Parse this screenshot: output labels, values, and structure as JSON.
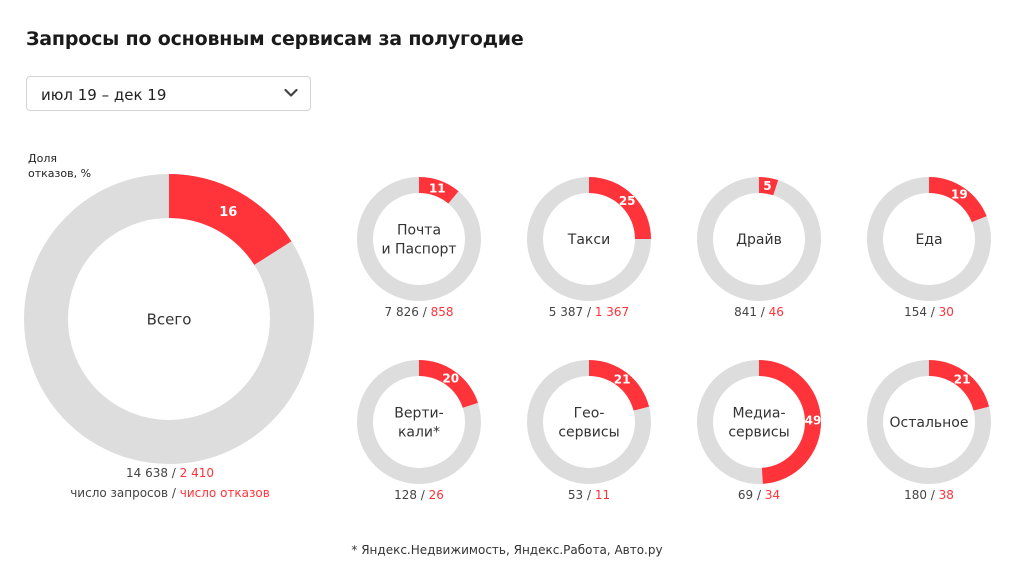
{
  "header": {
    "title": "Запросы по основным сервисам за полугодие"
  },
  "period": {
    "selected": "июл 19 – дек 19",
    "icon": "chevron-down-icon"
  },
  "legend": {
    "share_label_line1": "Доля",
    "share_label_line2": "отказов, %",
    "requests_label": "число запросов",
    "separator": " / ",
    "refusals_label": "число отказов"
  },
  "colors": {
    "refusal": "#ff333a",
    "track": "#dddddd",
    "text": "#333333"
  },
  "footnote": "* Яндекс.Недвижимость, Яндекс.Работа, Авто.ру",
  "chart_data": {
    "type": "pie",
    "value_label": "Доля отказов, %",
    "total": {
      "name": "Всего",
      "share": "16",
      "requests": "14 638",
      "refusals": "2 410"
    },
    "services": [
      {
        "name_line1": "Почта",
        "name_line2": "и Паспорт",
        "share": "11",
        "requests": "7 826",
        "refusals": "858"
      },
      {
        "name_line1": "Такси",
        "name_line2": "",
        "share": "25",
        "requests": "5 387",
        "refusals": "1 367"
      },
      {
        "name_line1": "Драйв",
        "name_line2": "",
        "share": "5",
        "requests": "841",
        "refusals": "46"
      },
      {
        "name_line1": "Еда",
        "name_line2": "",
        "share": "19",
        "requests": "154",
        "refusals": "30"
      },
      {
        "name_line1": "Верти-",
        "name_line2": "кали*",
        "share": "20",
        "requests": "128",
        "refusals": "26"
      },
      {
        "name_line1": "Гео-",
        "name_line2": "сервисы",
        "share": "21",
        "requests": "53",
        "refusals": "11"
      },
      {
        "name_line1": "Медиа-",
        "name_line2": "сервисы",
        "share": "49",
        "requests": "69",
        "refusals": "34"
      },
      {
        "name_line1": "Остальное",
        "name_line2": "",
        "share": "21",
        "requests": "180",
        "refusals": "38"
      }
    ]
  }
}
